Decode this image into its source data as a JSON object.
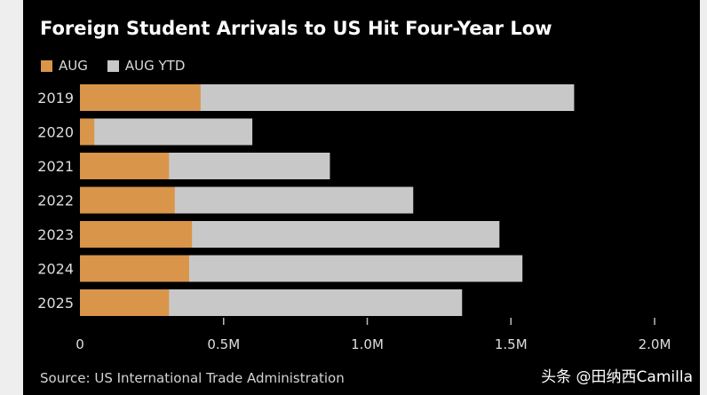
{
  "chart_data": {
    "type": "bar",
    "orientation": "horizontal",
    "stacked": true,
    "title": "Foreign Student Arrivals to US Hit Four-Year Low",
    "categories": [
      "2019",
      "2020",
      "2021",
      "2022",
      "2023",
      "2024",
      "2025"
    ],
    "series": [
      {
        "name": "AUG",
        "color": "#d9954a",
        "values": [
          0.42,
          0.05,
          0.31,
          0.33,
          0.39,
          0.38,
          0.31
        ]
      },
      {
        "name": "AUG YTD",
        "color": "#c8c8c8",
        "values": [
          1.72,
          0.6,
          0.87,
          1.16,
          1.46,
          1.54,
          1.33
        ]
      }
    ],
    "xlim": [
      0,
      2.0
    ],
    "xticks": [
      0,
      0.5,
      1.0,
      1.5,
      2.0
    ],
    "xtick_labels": [
      "0",
      "0.5M",
      "1.0M",
      "1.5M",
      "2.0M"
    ],
    "xlabel": "",
    "ylabel": "",
    "grid": false,
    "legend": "top-left",
    "source": "Source: US International Trade Administration"
  },
  "watermark": "头条 @田纳西Camilla"
}
